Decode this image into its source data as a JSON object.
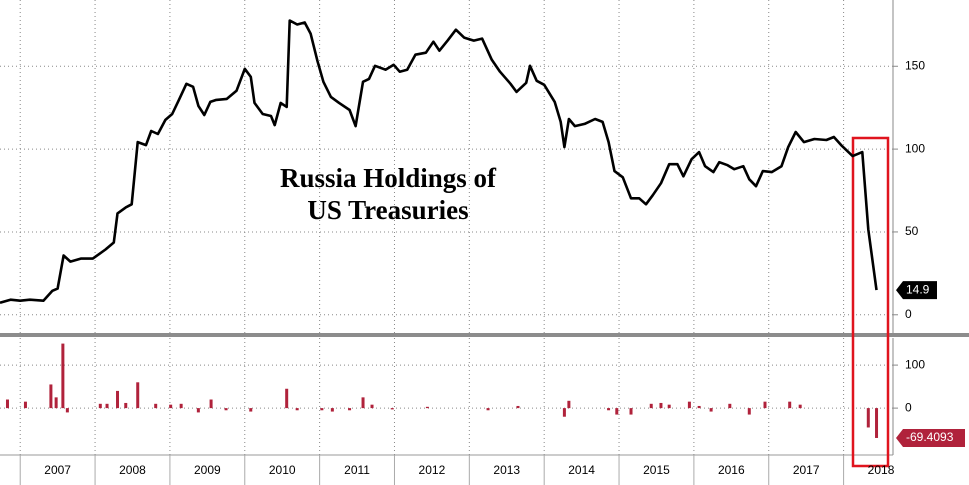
{
  "chart_data": [
    {
      "type": "line",
      "title": [
        "Russia Holdings of",
        "US Treasuries"
      ],
      "color": "#000000",
      "x": [
        2006.73,
        2006.87,
        2007.0,
        2007.13,
        2007.31,
        2007.43,
        2007.5,
        2007.58,
        2007.67,
        2007.81,
        2007.97,
        2008.14,
        2008.25,
        2008.3,
        2008.41,
        2008.49,
        2008.57,
        2008.68,
        2008.75,
        2008.84,
        2008.94,
        2009.03,
        2009.12,
        2009.22,
        2009.31,
        2009.38,
        2009.46,
        2009.54,
        2009.62,
        2009.76,
        2009.89,
        2010.0,
        2010.08,
        2010.13,
        2010.24,
        2010.35,
        2010.4,
        2010.48,
        2010.56,
        2010.6,
        2010.7,
        2010.8,
        2010.88,
        2010.97,
        2011.05,
        2011.15,
        2011.26,
        2011.4,
        2011.48,
        2011.58,
        2011.66,
        2011.74,
        2011.88,
        2011.99,
        2012.07,
        2012.17,
        2012.28,
        2012.42,
        2012.52,
        2012.6,
        2012.71,
        2012.82,
        2012.93,
        2013.06,
        2013.17,
        2013.3,
        2013.41,
        2013.55,
        2013.63,
        2013.76,
        2013.81,
        2013.9,
        2014.0,
        2014.14,
        2014.22,
        2014.27,
        2014.33,
        2014.41,
        2014.54,
        2014.68,
        2014.78,
        2014.86,
        2014.94,
        2015.05,
        2015.16,
        2015.27,
        2015.36,
        2015.45,
        2015.56,
        2015.67,
        2015.78,
        2015.86,
        2015.97,
        2016.07,
        2016.15,
        2016.26,
        2016.34,
        2016.45,
        2016.54,
        2016.66,
        2016.74,
        2016.83,
        2016.92,
        2017.04,
        2017.17,
        2017.26,
        2017.36,
        2017.47,
        2017.61,
        2017.77,
        2017.87,
        2017.98,
        2018.12,
        2018.25,
        2018.33,
        2018.44
      ],
      "values": [
        7.3,
        9.1,
        8.5,
        9.1,
        8.5,
        14.5,
        15.8,
        35.8,
        32.1,
        33.9,
        33.9,
        39.4,
        43.6,
        61.2,
        64.8,
        66.7,
        104.2,
        102.4,
        110.9,
        109.1,
        117.6,
        121.2,
        129.7,
        139.4,
        137.6,
        126.1,
        120.6,
        128.5,
        129.7,
        130.3,
        135.2,
        148.5,
        143.6,
        127.9,
        121.2,
        120,
        114.5,
        127.9,
        125.5,
        177.6,
        175.2,
        176.4,
        169.7,
        153.3,
        140.6,
        131.5,
        127.9,
        123.6,
        113.9,
        140.6,
        142.4,
        150.3,
        147.9,
        150.9,
        146.7,
        147.9,
        157,
        158.2,
        164.8,
        159.4,
        165.5,
        172.1,
        167.3,
        165.5,
        166.7,
        153.9,
        146.7,
        139.4,
        134.5,
        140,
        150.3,
        141.2,
        138.8,
        128.5,
        116.4,
        101.2,
        118.2,
        113.9,
        115.2,
        118.2,
        116.4,
        104.2,
        86.7,
        83,
        70.3,
        70.3,
        66.7,
        72.1,
        79.4,
        90.9,
        90.9,
        83.6,
        93.9,
        98.2,
        89.7,
        86.1,
        92.1,
        90.3,
        87.9,
        89.7,
        81.8,
        77.6,
        86.7,
        86.1,
        89.7,
        101.2,
        110.3,
        104.2,
        106.1,
        105.5,
        107.3,
        101.8,
        95.8,
        98.2,
        51.5,
        14.9
      ],
      "last_label": "14.9",
      "xlim": [
        2006.73,
        2018.66
      ],
      "ylim": [
        -11,
        190
      ],
      "yticks": [
        0,
        50,
        100,
        150
      ],
      "xgrid": [
        2007,
        2008,
        2009,
        2010,
        2011,
        2012,
        2013,
        2014,
        2015,
        2016,
        2017,
        2018
      ],
      "grid": true
    },
    {
      "type": "bar",
      "color": "#b0223b",
      "x": [
        2006.83,
        2007.07,
        2007.41,
        2007.48,
        2007.57,
        2007.63,
        2008.07,
        2008.16,
        2008.3,
        2008.41,
        2008.57,
        2008.81,
        2009.01,
        2009.15,
        2009.38,
        2009.55,
        2009.75,
        2010.08,
        2010.56,
        2010.7,
        2011.03,
        2011.17,
        2011.4,
        2011.58,
        2011.7,
        2011.97,
        2012.44,
        2013.25,
        2013.65,
        2014.27,
        2014.33,
        2014.86,
        2014.97,
        2015.16,
        2015.43,
        2015.56,
        2015.67,
        2015.94,
        2016.07,
        2016.23,
        2016.48,
        2016.74,
        2016.95,
        2017.28,
        2017.42,
        2018.33,
        2018.44
      ],
      "values": [
        20,
        15,
        55,
        25,
        150,
        -10,
        10,
        10,
        40,
        12,
        60,
        10,
        8,
        10,
        -10,
        20,
        -5,
        -8,
        45,
        -5,
        -5,
        -8,
        -5,
        25,
        8,
        -3,
        3,
        -5,
        5,
        -20,
        17,
        -5,
        -15,
        -15,
        10,
        12,
        8,
        15,
        5,
        -8,
        10,
        -15,
        15,
        15,
        8,
        -45,
        -69.4093
      ],
      "last_label": "-69.4093",
      "xlim": [
        2006.73,
        2018.66
      ],
      "ylim": [
        -109,
        163
      ],
      "yticks": [
        0,
        100
      ],
      "xticks": [
        {
          "value": 2007.5,
          "label": "2007"
        },
        {
          "value": 2008.5,
          "label": "2008"
        },
        {
          "value": 2009.5,
          "label": "2009"
        },
        {
          "value": 2010.5,
          "label": "2010"
        },
        {
          "value": 2011.5,
          "label": "2011"
        },
        {
          "value": 2012.5,
          "label": "2012"
        },
        {
          "value": 2013.5,
          "label": "2013"
        },
        {
          "value": 2014.5,
          "label": "2014"
        },
        {
          "value": 2015.5,
          "label": "2015"
        },
        {
          "value": 2016.5,
          "label": "2016"
        },
        {
          "value": 2017.5,
          "label": "2017"
        },
        {
          "value": 2018.5,
          "label": "2018"
        }
      ],
      "xgrid": [
        2007,
        2008,
        2009,
        2010,
        2011,
        2012,
        2013,
        2014,
        2015,
        2016,
        2017,
        2018
      ],
      "grid": true
    }
  ]
}
